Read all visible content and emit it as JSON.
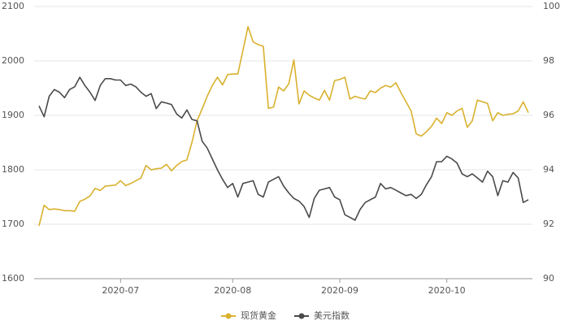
{
  "chart_data": {
    "type": "line",
    "categories": [
      null,
      null,
      null,
      null,
      null,
      null,
      null,
      null,
      null,
      null,
      null,
      null,
      null,
      null,
      null,
      null,
      "2020-07",
      null,
      null,
      null,
      null,
      null,
      null,
      null,
      null,
      null,
      null,
      null,
      null,
      null,
      null,
      null,
      null,
      null,
      null,
      null,
      null,
      null,
      "2020-08",
      null,
      null,
      null,
      null,
      null,
      null,
      null,
      null,
      null,
      null,
      null,
      null,
      null,
      null,
      null,
      null,
      null,
      null,
      null,
      null,
      "2020-09",
      null,
      null,
      null,
      null,
      null,
      null,
      null,
      null,
      null,
      null,
      null,
      null,
      null,
      null,
      null,
      null,
      null,
      null,
      null,
      null,
      "2020-10",
      null,
      null,
      null,
      null,
      null,
      null,
      null,
      null,
      null,
      null,
      null,
      null,
      null,
      null,
      null,
      null
    ],
    "series": [
      {
        "name": "现货黄金",
        "color": "#d9b12e",
        "axis": "y",
        "values": [
          1697,
          1735,
          1727,
          1728,
          1727,
          1725,
          1725,
          1724,
          1742,
          1746,
          1752,
          1766,
          1762,
          1770,
          1771,
          1772,
          1780,
          1771,
          1775,
          1780,
          1785,
          1808,
          1800,
          1802,
          1803,
          1810,
          1798,
          1808,
          1815,
          1818,
          1850,
          1890,
          1912,
          1935,
          1955,
          1970,
          1956,
          1975,
          1976,
          1976,
          2019,
          2063,
          2035,
          2030,
          2027,
          1913,
          1915,
          1952,
          1945,
          1958,
          2002,
          1921,
          1945,
          1937,
          1932,
          1928,
          1946,
          1928,
          1964,
          1966,
          1970,
          1930,
          1935,
          1932,
          1930,
          1945,
          1942,
          1950,
          1955,
          1952,
          1960,
          1942,
          1925,
          1908,
          1866,
          1862,
          1870,
          1880,
          1895,
          1885,
          1905,
          1900,
          1908,
          1913,
          1878,
          1890,
          1928,
          1925,
          1922,
          1890,
          1905,
          1900,
          1902,
          1903,
          1908,
          1925,
          1905
        ]
      },
      {
        "name": "美元指数",
        "color": "#4a4a4a",
        "axis": "y2",
        "values": [
          96.35,
          95.95,
          96.7,
          96.95,
          96.85,
          96.65,
          96.95,
          97.05,
          97.4,
          97.1,
          96.85,
          96.55,
          97.1,
          97.35,
          97.35,
          97.3,
          97.3,
          97.1,
          97.15,
          97.05,
          96.85,
          96.7,
          96.8,
          96.25,
          96.5,
          96.45,
          96.4,
          96.05,
          95.9,
          96.2,
          95.85,
          95.8,
          95.05,
          94.8,
          94.4,
          94.0,
          93.65,
          93.35,
          93.5,
          93.0,
          93.5,
          93.55,
          93.6,
          93.1,
          93.0,
          93.55,
          93.65,
          93.75,
          93.4,
          93.15,
          92.95,
          92.85,
          92.65,
          92.25,
          92.95,
          93.25,
          93.3,
          93.35,
          93.0,
          92.9,
          92.35,
          92.25,
          92.15,
          92.55,
          92.8,
          92.9,
          93.0,
          93.5,
          93.3,
          93.35,
          93.25,
          93.15,
          93.05,
          93.1,
          92.95,
          93.1,
          93.45,
          93.75,
          94.3,
          94.3,
          94.5,
          94.4,
          94.25,
          93.85,
          93.75,
          93.85,
          93.7,
          93.55,
          93.95,
          93.75,
          93.05,
          93.6,
          93.55,
          93.9,
          93.7,
          92.8,
          92.9
        ]
      }
    ],
    "ylim": [
      1600,
      2100
    ],
    "yticks": [
      1600,
      1700,
      1800,
      1900,
      2000,
      2100
    ],
    "y2lim": [
      90,
      100
    ],
    "y2ticks": [
      90,
      92,
      94,
      96,
      98,
      100
    ],
    "grid": true,
    "legend": "bottom"
  }
}
